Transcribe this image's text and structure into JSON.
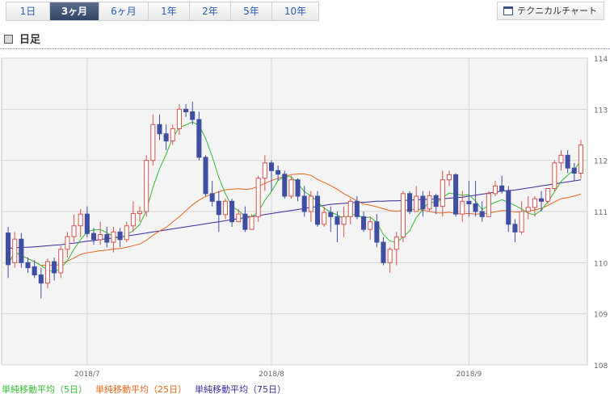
{
  "tabs": [
    {
      "label": "1日",
      "active": false
    },
    {
      "label": "3ヶ月",
      "active": true
    },
    {
      "label": "6ヶ月",
      "active": false
    },
    {
      "label": "1年",
      "active": false
    },
    {
      "label": "2年",
      "active": false
    },
    {
      "label": "5年",
      "active": false
    },
    {
      "label": "10年",
      "active": false
    }
  ],
  "technical_chart_label": "テクニカルチャート",
  "section_title": "日足",
  "legend": [
    {
      "label": "単純移動平均（5日）",
      "color": "#33bb33"
    },
    {
      "label": "単純移動平均（25日）",
      "color": "#e8661e"
    },
    {
      "label": "単純移動平均（75日）",
      "color": "#3b2a9a"
    }
  ],
  "colors": {
    "up": "#d9534f",
    "down": "#3f4ea3",
    "ma5": "#33bb33",
    "ma25": "#e8661e",
    "ma75": "#3b2a9a"
  },
  "chart_data": {
    "type": "candlestick",
    "ylim": [
      108,
      114
    ],
    "yticks": [
      108,
      109,
      110,
      111,
      112,
      113,
      114
    ],
    "xticks": [
      {
        "i": 12,
        "label": "2018/7"
      },
      {
        "i": 40,
        "label": "2018/8"
      },
      {
        "i": 70,
        "label": "2018/9"
      }
    ],
    "ohlc": [
      [
        110.58,
        110.7,
        109.7,
        109.96
      ],
      [
        110.0,
        110.6,
        109.9,
        110.46
      ],
      [
        110.46,
        110.58,
        109.9,
        110.0
      ],
      [
        110.0,
        110.1,
        109.8,
        109.9
      ],
      [
        109.92,
        110.05,
        109.7,
        109.76
      ],
      [
        109.76,
        109.9,
        109.3,
        109.6
      ],
      [
        109.6,
        110.08,
        109.5,
        110.02
      ],
      [
        110.02,
        110.1,
        109.65,
        109.8
      ],
      [
        109.8,
        110.32,
        109.7,
        110.26
      ],
      [
        110.26,
        110.6,
        110.1,
        110.51
      ],
      [
        110.51,
        110.94,
        110.4,
        110.72
      ],
      [
        110.72,
        111.05,
        110.5,
        110.95
      ],
      [
        110.95,
        111.1,
        110.5,
        110.57
      ],
      [
        110.57,
        110.68,
        110.35,
        110.45
      ],
      [
        110.45,
        110.8,
        110.35,
        110.55
      ],
      [
        110.55,
        110.7,
        110.3,
        110.4
      ],
      [
        110.4,
        110.7,
        110.2,
        110.6
      ],
      [
        110.6,
        110.68,
        110.3,
        110.45
      ],
      [
        110.45,
        110.8,
        110.4,
        110.72
      ],
      [
        110.72,
        111.2,
        110.6,
        110.96
      ],
      [
        110.96,
        111.1,
        110.8,
        111.0
      ],
      [
        111.0,
        112.1,
        110.9,
        112.0
      ],
      [
        112.0,
        112.9,
        111.9,
        112.7
      ],
      [
        112.7,
        112.9,
        112.4,
        112.52
      ],
      [
        112.52,
        112.7,
        112.2,
        112.38
      ],
      [
        112.38,
        112.7,
        112.3,
        112.62
      ],
      [
        112.62,
        113.1,
        112.5,
        113.0
      ],
      [
        113.0,
        113.1,
        112.85,
        112.95
      ],
      [
        112.95,
        113.15,
        112.7,
        112.8
      ],
      [
        112.8,
        112.95,
        112.0,
        112.06
      ],
      [
        112.06,
        112.1,
        111.3,
        111.35
      ],
      [
        111.35,
        111.6,
        111.1,
        111.2
      ],
      [
        111.2,
        111.4,
        110.6,
        110.94
      ],
      [
        110.94,
        111.25,
        110.85,
        111.2
      ],
      [
        111.2,
        111.25,
        110.7,
        110.8
      ],
      [
        110.8,
        111.05,
        110.8,
        110.95
      ],
      [
        110.95,
        111.1,
        110.6,
        110.65
      ],
      [
        110.65,
        110.95,
        110.65,
        110.9
      ],
      [
        110.9,
        111.7,
        110.8,
        111.65
      ],
      [
        111.65,
        112.1,
        111.4,
        111.95
      ],
      [
        111.95,
        112.0,
        111.4,
        111.8
      ],
      [
        111.8,
        111.9,
        111.6,
        111.73
      ],
      [
        111.73,
        111.8,
        111.25,
        111.3
      ],
      [
        111.3,
        111.7,
        111.25,
        111.62
      ],
      [
        111.62,
        111.65,
        111.2,
        111.3
      ],
      [
        111.3,
        111.5,
        110.9,
        111.0
      ],
      [
        111.0,
        111.4,
        110.8,
        111.3
      ],
      [
        111.3,
        111.4,
        110.7,
        110.75
      ],
      [
        110.75,
        111.1,
        110.7,
        110.98
      ],
      [
        110.98,
        111.1,
        110.6,
        110.9
      ],
      [
        110.9,
        111.0,
        110.4,
        110.75
      ],
      [
        110.75,
        111.1,
        110.5,
        110.9
      ],
      [
        110.9,
        111.25,
        110.75,
        111.2
      ],
      [
        111.2,
        111.3,
        110.85,
        110.9
      ],
      [
        110.9,
        111.0,
        110.6,
        110.65
      ],
      [
        110.65,
        110.9,
        110.45,
        110.8
      ],
      [
        110.8,
        110.95,
        110.3,
        110.4
      ],
      [
        110.4,
        110.5,
        109.95,
        110.0
      ],
      [
        110.0,
        110.3,
        109.8,
        110.26
      ],
      [
        110.26,
        110.6,
        109.95,
        110.5
      ],
      [
        110.5,
        111.4,
        110.4,
        111.35
      ],
      [
        111.35,
        111.4,
        110.95,
        111.0
      ],
      [
        111.0,
        111.5,
        111.0,
        111.3
      ],
      [
        111.3,
        111.4,
        110.9,
        111.05
      ],
      [
        111.05,
        111.4,
        111.0,
        111.31
      ],
      [
        111.31,
        111.35,
        110.95,
        111.1
      ],
      [
        111.1,
        111.8,
        110.9,
        111.62
      ],
      [
        111.62,
        111.8,
        111.5,
        111.72
      ],
      [
        111.72,
        111.75,
        110.9,
        110.95
      ],
      [
        110.95,
        111.4,
        110.8,
        111.2
      ],
      [
        111.2,
        111.6,
        110.9,
        111.15
      ],
      [
        111.15,
        111.6,
        110.9,
        111.0
      ],
      [
        111.0,
        111.2,
        110.8,
        110.9
      ],
      [
        110.9,
        111.4,
        110.9,
        111.35
      ],
      [
        111.35,
        111.6,
        111.3,
        111.5
      ],
      [
        111.5,
        111.7,
        111.35,
        111.4
      ],
      [
        111.4,
        111.5,
        110.6,
        110.75
      ],
      [
        110.75,
        110.85,
        110.4,
        110.6
      ],
      [
        110.6,
        111.2,
        110.55,
        111.0
      ],
      [
        111.0,
        111.3,
        110.85,
        111.08
      ],
      [
        111.08,
        111.3,
        110.9,
        111.25
      ],
      [
        111.25,
        111.4,
        111.0,
        111.2
      ],
      [
        111.2,
        111.45,
        111.15,
        111.45
      ],
      [
        111.45,
        112.0,
        111.4,
        111.95
      ],
      [
        111.95,
        112.2,
        111.8,
        112.1
      ],
      [
        112.1,
        112.2,
        111.75,
        111.85
      ],
      [
        111.85,
        111.95,
        111.6,
        111.75
      ],
      [
        111.75,
        112.4,
        111.65,
        112.3
      ]
    ],
    "ma75": [
      110.28,
      110.29,
      110.3,
      110.3,
      110.31,
      110.32,
      110.33,
      110.34,
      110.35,
      110.37,
      110.38,
      110.4,
      110.42,
      110.43,
      110.45,
      110.47,
      110.48,
      110.5,
      110.52,
      110.54,
      110.56,
      110.58,
      110.6,
      110.62,
      110.64,
      110.66,
      110.68,
      110.7,
      110.72,
      110.74,
      110.76,
      110.78,
      110.8,
      110.82,
      110.84,
      110.86,
      110.88,
      110.9,
      110.92,
      110.94,
      110.96,
      110.98,
      111.0,
      111.02,
      111.04,
      111.06,
      111.08,
      111.1,
      111.12,
      111.14,
      111.15,
      111.16,
      111.17,
      111.18,
      111.18,
      111.19,
      111.2,
      111.2,
      111.21,
      111.21,
      111.22,
      111.22,
      111.23,
      111.23,
      111.24,
      111.24,
      111.25,
      111.26,
      111.27,
      111.28,
      111.3,
      111.32,
      111.34,
      111.36,
      111.38,
      111.4,
      111.41,
      111.42,
      111.44,
      111.46,
      111.48,
      111.5,
      111.52,
      111.54,
      111.56,
      111.58,
      111.6,
      111.62
    ]
  }
}
